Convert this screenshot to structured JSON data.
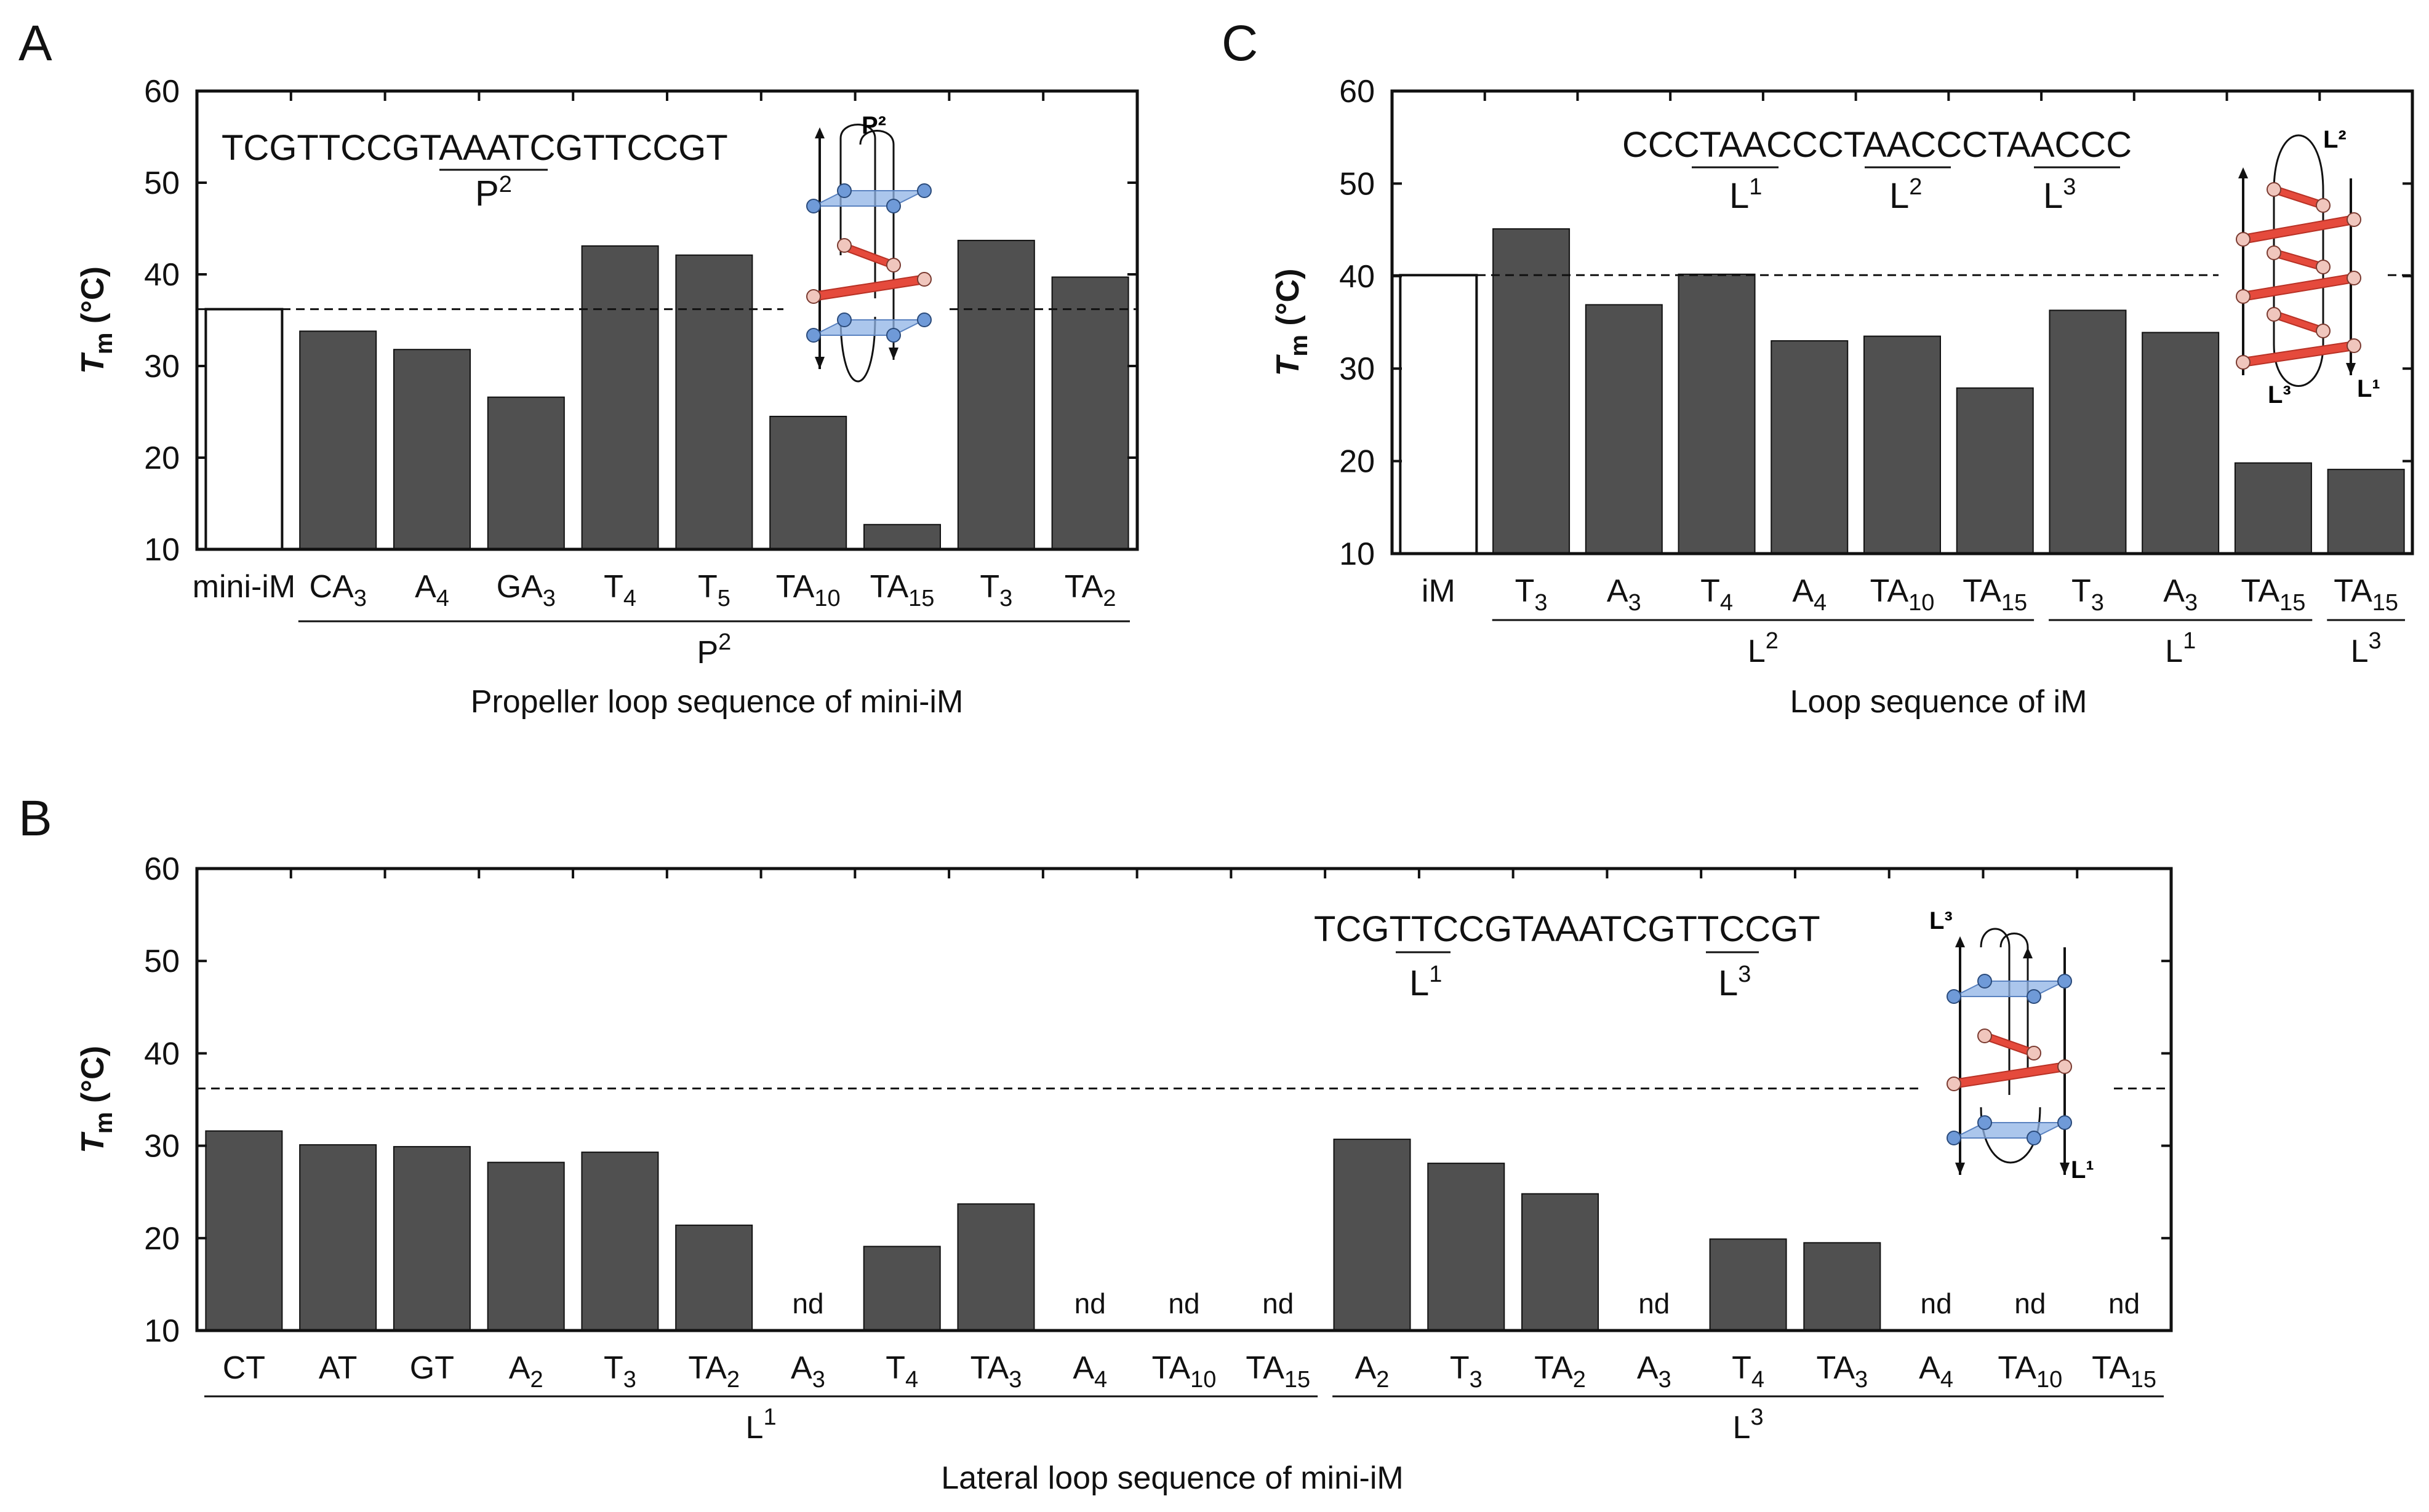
{
  "colors": {
    "bar": "#505050",
    "reference_bar": "#ffffff",
    "axis": "#111111",
    "strand_red": "#e54a3c",
    "plane_blue": "#8fb3e6",
    "node_blue": "#6f9ad8",
    "node_pink": "#f0c6bd"
  },
  "chart_data": [
    {
      "panel": "A",
      "type": "bar",
      "xlabel": "Propeller loop sequence of mini-iM",
      "ylabel": "T_m (°C)",
      "ylim": [
        10,
        60
      ],
      "yticks": [
        "10",
        "20",
        "30",
        "40",
        "50",
        "60"
      ],
      "reference_line": 36.2,
      "categories": [
        {
          "base": "mini-iM",
          "sub": ""
        },
        {
          "base": "CA",
          "sub": "3"
        },
        {
          "base": "A",
          "sub": "4"
        },
        {
          "base": "GA",
          "sub": "3"
        },
        {
          "base": "T",
          "sub": "4"
        },
        {
          "base": "T",
          "sub": "5"
        },
        {
          "base": "TA",
          "sub": "10"
        },
        {
          "base": "TA",
          "sub": "15"
        },
        {
          "base": "T",
          "sub": "3"
        },
        {
          "base": "TA",
          "sub": "2"
        }
      ],
      "values": [
        36.2,
        33.8,
        31.8,
        26.6,
        43.1,
        42.1,
        24.5,
        12.7,
        43.7,
        39.7
      ],
      "reference_index": 0,
      "groups": [
        {
          "label": "P",
          "sup": "2",
          "from": 1,
          "to": 9
        }
      ],
      "sequence": {
        "pre": "TCGTTCCG",
        "loop": "TAAA",
        "post": "TCGTTCCGT",
        "label": "P",
        "label_sup": "2"
      },
      "diagram_label": "P²"
    },
    {
      "panel": "C",
      "type": "bar",
      "xlabel": "Loop sequence of iM",
      "ylabel": "T_m (°C)",
      "ylim": [
        10,
        60
      ],
      "yticks": [
        "10",
        "20",
        "30",
        "40",
        "50",
        "60"
      ],
      "reference_line": 40.1,
      "categories": [
        {
          "base": "iM",
          "sub": ""
        },
        {
          "base": "T",
          "sub": "3"
        },
        {
          "base": "A",
          "sub": "3"
        },
        {
          "base": "T",
          "sub": "4"
        },
        {
          "base": "A",
          "sub": "4"
        },
        {
          "base": "TA",
          "sub": "10"
        },
        {
          "base": "TA",
          "sub": "15"
        },
        {
          "base": "T",
          "sub": "3"
        },
        {
          "base": "A",
          "sub": "3"
        },
        {
          "base": "TA",
          "sub": "15"
        },
        {
          "base": "TA",
          "sub": "15"
        }
      ],
      "values": [
        40.1,
        45.1,
        36.9,
        40.2,
        33.0,
        33.5,
        27.9,
        36.3,
        33.9,
        19.8,
        19.1
      ],
      "reference_index": 0,
      "groups": [
        {
          "label": "L",
          "sup": "2",
          "from": 1,
          "to": 6
        },
        {
          "label": "L",
          "sup": "1",
          "from": 7,
          "to": 9
        },
        {
          "label": "L",
          "sup": "3",
          "from": 10,
          "to": 10
        }
      ],
      "sequence": {
        "parts": [
          "CCC",
          "TAA",
          "CCC",
          "TAA",
          "CCC",
          "TAA",
          "CCC"
        ],
        "labels": [
          {
            "label": "L",
            "sup": "1"
          },
          {
            "label": "L",
            "sup": "2"
          },
          {
            "label": "L",
            "sup": "3"
          }
        ]
      },
      "diagram_labels": [
        "L²",
        "L³",
        "L¹"
      ]
    },
    {
      "panel": "B",
      "type": "bar",
      "xlabel": "Lateral loop sequence of mini-iM",
      "ylabel": "T_m (°C)",
      "ylim": [
        10,
        60
      ],
      "yticks": [
        "10",
        "20",
        "30",
        "40",
        "50",
        "60"
      ],
      "reference_line": 36.2,
      "categories": [
        {
          "base": "CT",
          "sub": ""
        },
        {
          "base": "AT",
          "sub": ""
        },
        {
          "base": "GT",
          "sub": ""
        },
        {
          "base": "A",
          "sub": "2"
        },
        {
          "base": "T",
          "sub": "3"
        },
        {
          "base": "TA",
          "sub": "2"
        },
        {
          "base": "A",
          "sub": "3"
        },
        {
          "base": "T",
          "sub": "4"
        },
        {
          "base": "TA",
          "sub": "3"
        },
        {
          "base": "A",
          "sub": "4"
        },
        {
          "base": "TA",
          "sub": "10"
        },
        {
          "base": "TA",
          "sub": "15"
        },
        {
          "base": "A",
          "sub": "2"
        },
        {
          "base": "T",
          "sub": "3"
        },
        {
          "base": "TA",
          "sub": "2"
        },
        {
          "base": "A",
          "sub": "3"
        },
        {
          "base": "T",
          "sub": "4"
        },
        {
          "base": "TA",
          "sub": "3"
        },
        {
          "base": "A",
          "sub": "4"
        },
        {
          "base": "TA",
          "sub": "10"
        },
        {
          "base": "TA",
          "sub": "15"
        }
      ],
      "values": [
        31.6,
        30.1,
        29.9,
        28.2,
        29.3,
        21.4,
        null,
        19.1,
        23.7,
        null,
        null,
        null,
        30.7,
        28.1,
        24.8,
        null,
        19.9,
        19.5,
        null,
        null,
        null
      ],
      "nd_label": "nd",
      "groups": [
        {
          "label": "L",
          "sup": "1",
          "from": 0,
          "to": 11
        },
        {
          "label": "L",
          "sup": "3",
          "from": 12,
          "to": 20
        }
      ],
      "sequence": {
        "parts": [
          "TCG",
          "TT",
          "CCGTAAATCG",
          "TT",
          "CCGT"
        ],
        "labels": [
          {
            "label": "L",
            "sup": "1"
          },
          {
            "label": "L",
            "sup": "3"
          }
        ]
      },
      "diagram_labels": [
        "L³",
        "L¹"
      ]
    }
  ]
}
